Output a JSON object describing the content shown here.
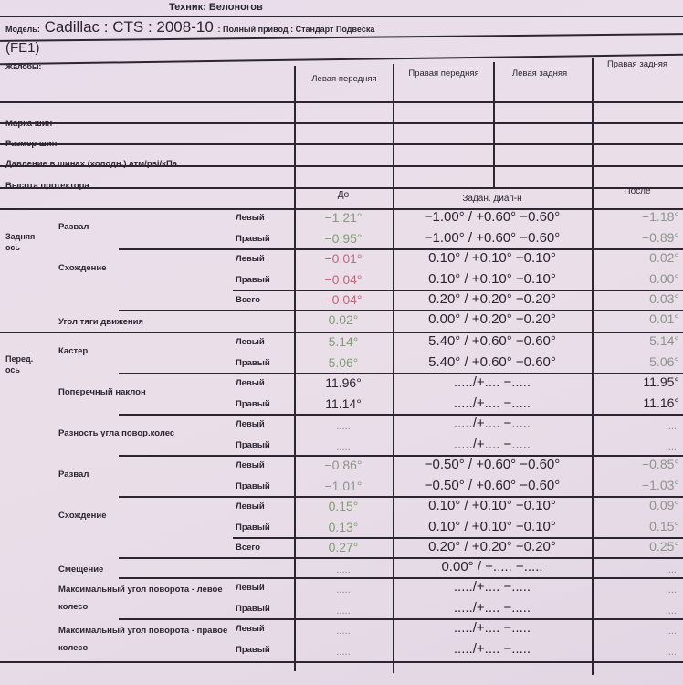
{
  "header": {
    "technician": "Техник: Белоногов",
    "model_label": "Модель:",
    "model": "Cadillac : CTS : 2008-10",
    "drive": ": Полный привод : Стандарт Подвеска",
    "code": "(FE1)",
    "complaints_label": "Жалобы:"
  },
  "tires": {
    "columns": [
      "Левая передняя",
      "Правая передняя",
      "Левая задняя",
      "Правая задняя"
    ],
    "rows": [
      "Марка шин",
      "Размер шин",
      "Давление в шинах (холодн.) атм/psi/кПа",
      "Высота протектора"
    ]
  },
  "columns": {
    "before": "До",
    "spec": "Задан. диап-н",
    "after": "После"
  },
  "colors": {
    "green": "#7f9f74",
    "red": "#c0687a",
    "black": "#2a2530",
    "gray": "#8b958a"
  },
  "axles": [
    {
      "label": "Задняя ось",
      "groups": [
        {
          "label": "Развал",
          "rows": [
            {
              "side": "Левый",
              "before": "−1.21°",
              "before_color": "green",
              "spec": "−1.00° / +0.60° −0.60°",
              "after": "−1.18°",
              "after_color": "gray"
            },
            {
              "side": "Правый",
              "before": "−0.95°",
              "before_color": "green",
              "spec": "−1.00° / +0.60° −0.60°",
              "after": "−0.89°",
              "after_color": "gray"
            }
          ]
        },
        {
          "label": "Схождение",
          "sub": true,
          "rows": [
            {
              "side": "Левый",
              "before": "−0.01°",
              "before_color": "red",
              "spec": "0.10° / +0.10° −0.10°",
              "after": "0.02°",
              "after_color": "gray"
            },
            {
              "side": "Правый",
              "before": "−0.04°",
              "before_color": "red",
              "spec": "0.10° / +0.10° −0.10°",
              "after": "0.00°",
              "after_color": "gray"
            }
          ]
        },
        {
          "label": "",
          "rows": [
            {
              "side": "Всего",
              "before": "−0.04°",
              "before_color": "red",
              "spec": "0.20° / +0.20° −0.20°",
              "after": "0.03°",
              "after_color": "gray"
            }
          ]
        },
        {
          "label": "Угол тяги движения",
          "rows": [
            {
              "side": "",
              "before": "0.02°",
              "before_color": "green",
              "spec": "0.00° / +0.20° −0.20°",
              "after": "0.01°",
              "after_color": "gray"
            }
          ]
        }
      ]
    },
    {
      "label": "Перед. ось",
      "groups": [
        {
          "label": "Кастер",
          "rows": [
            {
              "side": "Левый",
              "before": "5.14°",
              "before_color": "green",
              "spec": "5.40° / +0.60° −0.60°",
              "after": "5.14°",
              "after_color": "gray"
            },
            {
              "side": "Правый",
              "before": "5.06°",
              "before_color": "green",
              "spec": "5.40° / +0.60° −0.60°",
              "after": "5.06°",
              "after_color": "gray"
            }
          ]
        },
        {
          "label": "Поперечный наклон",
          "rows": [
            {
              "side": "Левый",
              "before": "11.96°",
              "before_color": "black",
              "spec": "...../+....  −.....",
              "after": "11.95°",
              "after_color": "black"
            },
            {
              "side": "Правый",
              "before": "11.14°",
              "before_color": "black",
              "spec": "...../+....  −.....",
              "after": "11.16°",
              "after_color": "black"
            }
          ]
        },
        {
          "label": "Разность угла повор.колес",
          "rows": [
            {
              "side": "Левый",
              "before": ".....",
              "spec": "...../+....  −.....",
              "after": "....."
            },
            {
              "side": "Правый",
              "before": ".....",
              "spec": "...../+....  −.....",
              "after": "....."
            }
          ]
        },
        {
          "label": "Развал",
          "rows": [
            {
              "side": "Левый",
              "before": "−0.86°",
              "before_color": "gray",
              "spec": "−0.50° / +0.60° −0.60°",
              "after": "−0.85°",
              "after_color": "gray"
            },
            {
              "side": "Правый",
              "before": "−1.01°",
              "before_color": "gray",
              "spec": "−0.50° / +0.60° −0.60°",
              "after": "−1.03°",
              "after_color": "gray"
            }
          ]
        },
        {
          "label": "Схождение",
          "sub": true,
          "rows": [
            {
              "side": "Левый",
              "before": "0.15°",
              "before_color": "green",
              "spec": "0.10° / +0.10° −0.10°",
              "after": "0.09°",
              "after_color": "gray"
            },
            {
              "side": "Правый",
              "before": "0.13°",
              "before_color": "green",
              "spec": "0.10° / +0.10° −0.10°",
              "after": "0.15°",
              "after_color": "gray"
            }
          ]
        },
        {
          "label": "",
          "rows": [
            {
              "side": "Всего",
              "before": "0.27°",
              "before_color": "green",
              "spec": "0.20° / +0.20° −0.20°",
              "after": "0.25°",
              "after_color": "gray"
            }
          ]
        },
        {
          "label": "Смещение",
          "rows": [
            {
              "side": "",
              "before": ".....",
              "spec": "0.00° / +.....  −.....",
              "after": "....."
            }
          ]
        },
        {
          "label": "Максимальный угол поворота - левое колесо",
          "rows": [
            {
              "side": "Левый",
              "before": ".....",
              "spec": "...../+....  −.....",
              "after": "....."
            },
            {
              "side": "Правый",
              "before": ".....",
              "spec": "...../+....  −.....",
              "after": "....."
            }
          ]
        },
        {
          "label": "Максимальный угол поворота - правое колесо",
          "rows": [
            {
              "side": "Левый",
              "before": ".....",
              "spec": "...../+....  −.....",
              "after": "....."
            },
            {
              "side": "Правый",
              "before": ".....",
              "spec": "...../+....  −.....",
              "after": "....."
            }
          ]
        }
      ]
    }
  ]
}
